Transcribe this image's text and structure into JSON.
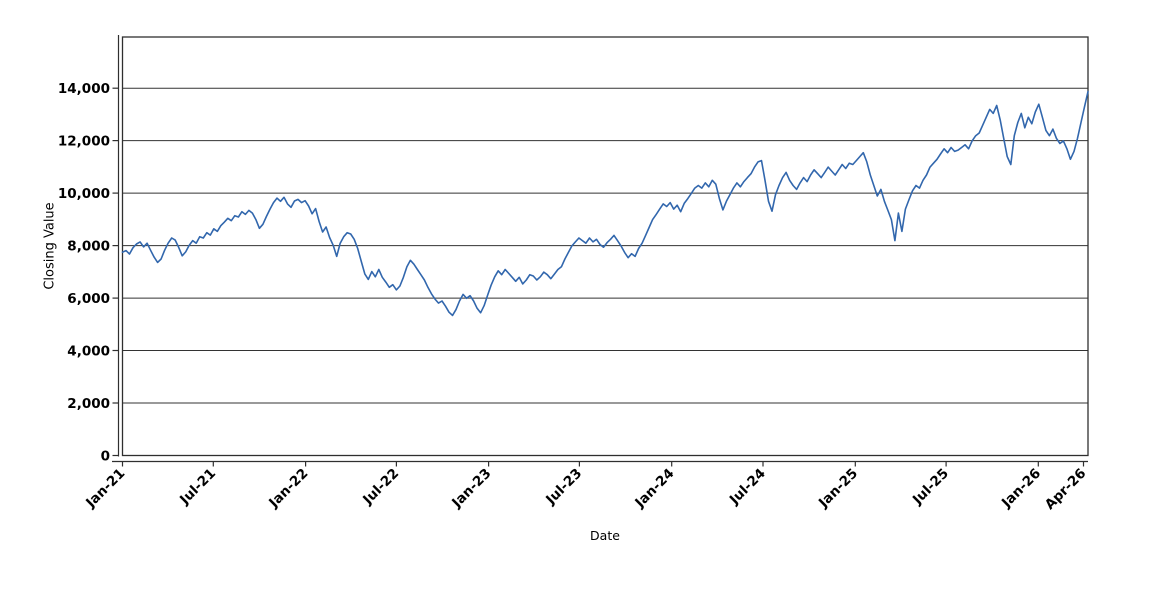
{
  "figure": {
    "background": "#ffffff",
    "axis_color": "#2f2f2f",
    "grid_color": "#333333",
    "text_color": "#000000"
  },
  "chart_data": {
    "type": "line",
    "title": "",
    "xlabel": "Date",
    "ylabel": "Closing Value",
    "legend": "none",
    "grid": "horizontal",
    "x_tick_labels": [
      "Jan-21",
      "Jul-21",
      "Jan-22",
      "Jul-22",
      "Jan-23",
      "Jul-23",
      "Jan-24",
      "Jul-24",
      "Jan-25",
      "Jul-25",
      "Jan-26",
      "Apr-26"
    ],
    "x_tick_days": [
      0,
      181,
      365,
      546,
      730,
      911,
      1095,
      1277,
      1461,
      1642,
      1826,
      1916
    ],
    "y_ticks": [
      0,
      2000,
      4000,
      6000,
      8000,
      10000,
      12000,
      14000
    ],
    "ylim": [
      0,
      15950
    ],
    "xlim_days": [
      0,
      1925
    ],
    "series": [
      {
        "name": "Closing Value",
        "color": "#3267ad",
        "x_start_day": 0,
        "x_step_days": 7,
        "values": [
          7750,
          7810,
          7680,
          7920,
          8060,
          8140,
          7950,
          8090,
          7820,
          7560,
          7360,
          7490,
          7820,
          8090,
          8290,
          8210,
          7930,
          7610,
          7760,
          8010,
          8190,
          8090,
          8340,
          8290,
          8490,
          8400,
          8640,
          8540,
          8760,
          8890,
          9040,
          8950,
          9140,
          9090,
          9290,
          9190,
          9340,
          9240,
          8990,
          8660,
          8810,
          9110,
          9390,
          9640,
          9810,
          9690,
          9840,
          9590,
          9460,
          9700,
          9760,
          9640,
          9710,
          9510,
          9210,
          9410,
          8920,
          8520,
          8710,
          8310,
          8010,
          7590,
          8090,
          8340,
          8490,
          8440,
          8240,
          7890,
          7410,
          6920,
          6710,
          7010,
          6810,
          7090,
          6790,
          6610,
          6410,
          6510,
          6310,
          6460,
          6790,
          7190,
          7440,
          7290,
          7090,
          6890,
          6690,
          6410,
          6160,
          5960,
          5810,
          5890,
          5690,
          5460,
          5340,
          5560,
          5890,
          6140,
          5990,
          6090,
          5890,
          5610,
          5440,
          5710,
          6110,
          6490,
          6810,
          7040,
          6890,
          7090,
          6940,
          6790,
          6640,
          6790,
          6540,
          6690,
          6890,
          6840,
          6690,
          6810,
          6990,
          6890,
          6740,
          6910,
          7090,
          7190,
          7490,
          7740,
          7990,
          8140,
          8290,
          8190,
          8090,
          8290,
          8140,
          8240,
          8040,
          7940,
          8110,
          8240,
          8390,
          8190,
          7990,
          7740,
          7540,
          7690,
          7590,
          7890,
          8090,
          8390,
          8690,
          8990,
          9190,
          9390,
          9590,
          9490,
          9640,
          9390,
          9540,
          9290,
          9610,
          9790,
          9990,
          10190,
          10290,
          10190,
          10390,
          10240,
          10490,
          10340,
          9790,
          9360,
          9690,
          9940,
          10190,
          10390,
          10240,
          10440,
          10590,
          10740,
          10990,
          11190,
          11240,
          10490,
          9690,
          9310,
          9940,
          10290,
          10590,
          10790,
          10490,
          10290,
          10140,
          10390,
          10590,
          10440,
          10690,
          10890,
          10740,
          10590,
          10790,
          10990,
          10840,
          10690,
          10890,
          11090,
          10940,
          11140,
          11090,
          11240,
          11390,
          11540,
          11190,
          10690,
          10290,
          9890,
          10140,
          9690,
          9340,
          8990,
          8190,
          9240,
          8540,
          9390,
          9740,
          10090,
          10290,
          10190,
          10490,
          10690,
          10990,
          11140,
          11290,
          11490,
          11690,
          11540,
          11740,
          11590,
          11640,
          11740,
          11840,
          11690,
          11990,
          12190,
          12290,
          12590,
          12890,
          13190,
          13040,
          13340,
          12790,
          12090,
          11390,
          11090,
          12190,
          12690,
          13040,
          12490,
          12890,
          12640,
          13090,
          13390,
          12890,
          12390,
          12190,
          12440,
          12090,
          11890,
          11990,
          11690,
          11290,
          11590,
          12090,
          12690,
          13290,
          13870
        ]
      }
    ]
  }
}
